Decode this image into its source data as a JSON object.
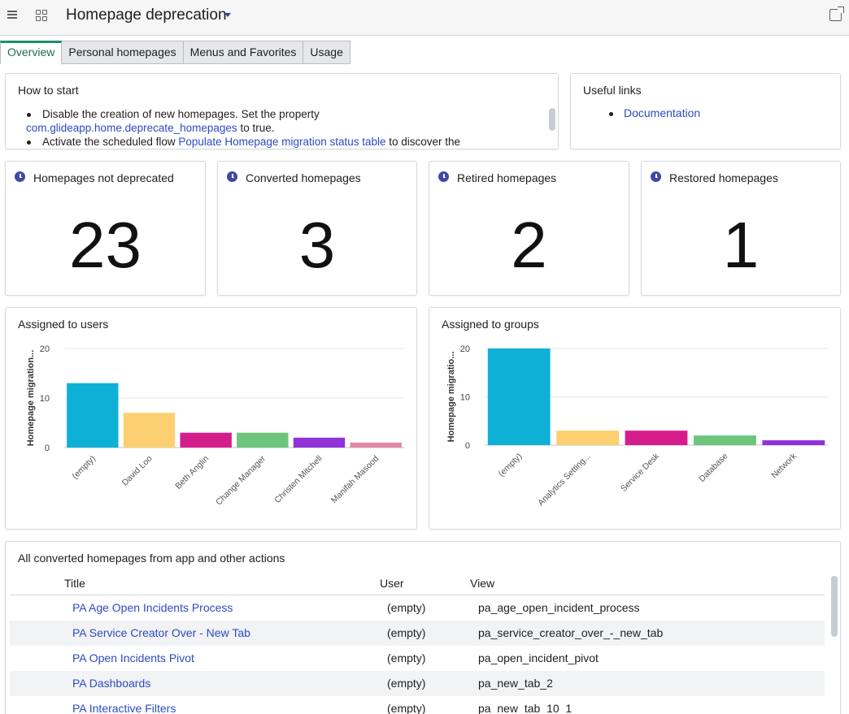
{
  "header": {
    "title": "Homepage deprecation"
  },
  "tabs": [
    {
      "label": "Overview",
      "active": true
    },
    {
      "label": "Personal homepages",
      "active": false
    },
    {
      "label": "Menus and Favorites",
      "active": false
    },
    {
      "label": "Usage",
      "active": false
    }
  ],
  "how_to_start": {
    "title": "How to start",
    "item1_text": "Disable the creation of new homepages. Set the property",
    "item1_link": "com.glideapp.home.deprecate_homepages",
    "item1_suffix": " to true.",
    "item2_prefix": "Activate the scheduled flow ",
    "item2_link": "Populate Homepage migration status table",
    "item2_suffix": " to discover the"
  },
  "useful_links": {
    "title": "Useful links",
    "items": [
      "Documentation"
    ]
  },
  "kpis": [
    {
      "title": "Homepages not deprecated",
      "value": "23"
    },
    {
      "title": "Converted homepages",
      "value": "3"
    },
    {
      "title": "Retired homepages",
      "value": "2"
    },
    {
      "title": "Restored homepages",
      "value": "1"
    }
  ],
  "chart_data": [
    {
      "type": "bar",
      "title": "Assigned to users",
      "ylabel": "Homepage migration...",
      "categories": [
        "(empty)",
        "David Loo",
        "Beth Anglin",
        "Change Manager",
        "Christen Mitchell",
        "Manifah Masood"
      ],
      "values": [
        13,
        7,
        3,
        3,
        2,
        1
      ],
      "colors": [
        "#0fb0d6",
        "#fcd070",
        "#d41d8b",
        "#6dc57c",
        "#9231d7",
        "#e388a6"
      ],
      "yticks": [
        0,
        10,
        20
      ],
      "ylim": [
        0,
        20
      ]
    },
    {
      "type": "bar",
      "title": "Assigned to groups",
      "ylabel": "Homepage migratio...",
      "categories": [
        "(empty)",
        "Analytics Setting...",
        "Service Desk",
        "Database",
        "Network"
      ],
      "values": [
        20,
        3,
        3,
        2,
        1
      ],
      "colors": [
        "#0fb0d6",
        "#fcd070",
        "#d41d8b",
        "#6dc57c",
        "#9231d7"
      ],
      "yticks": [
        0,
        10,
        20
      ],
      "ylim": [
        0,
        20
      ]
    }
  ],
  "table": {
    "title": "All converted homepages from app and other actions",
    "columns": [
      "Title",
      "User",
      "View"
    ],
    "rows": [
      {
        "title": "PA Age Open Incidents Process",
        "user": "(empty)",
        "view": "pa_age_open_incident_process"
      },
      {
        "title": "PA Service Creator Over - New Tab",
        "user": "(empty)",
        "view": "pa_service_creator_over_-_new_tab"
      },
      {
        "title": "PA Open Incidents Pivot",
        "user": "(empty)",
        "view": "pa_open_incident_pivot"
      },
      {
        "title": "PA Dashboards",
        "user": "(empty)",
        "view": "pa_new_tab_2"
      },
      {
        "title": "PA Interactive Filters",
        "user": "(empty)",
        "view": "pa_new_tab_10_1"
      }
    ]
  }
}
